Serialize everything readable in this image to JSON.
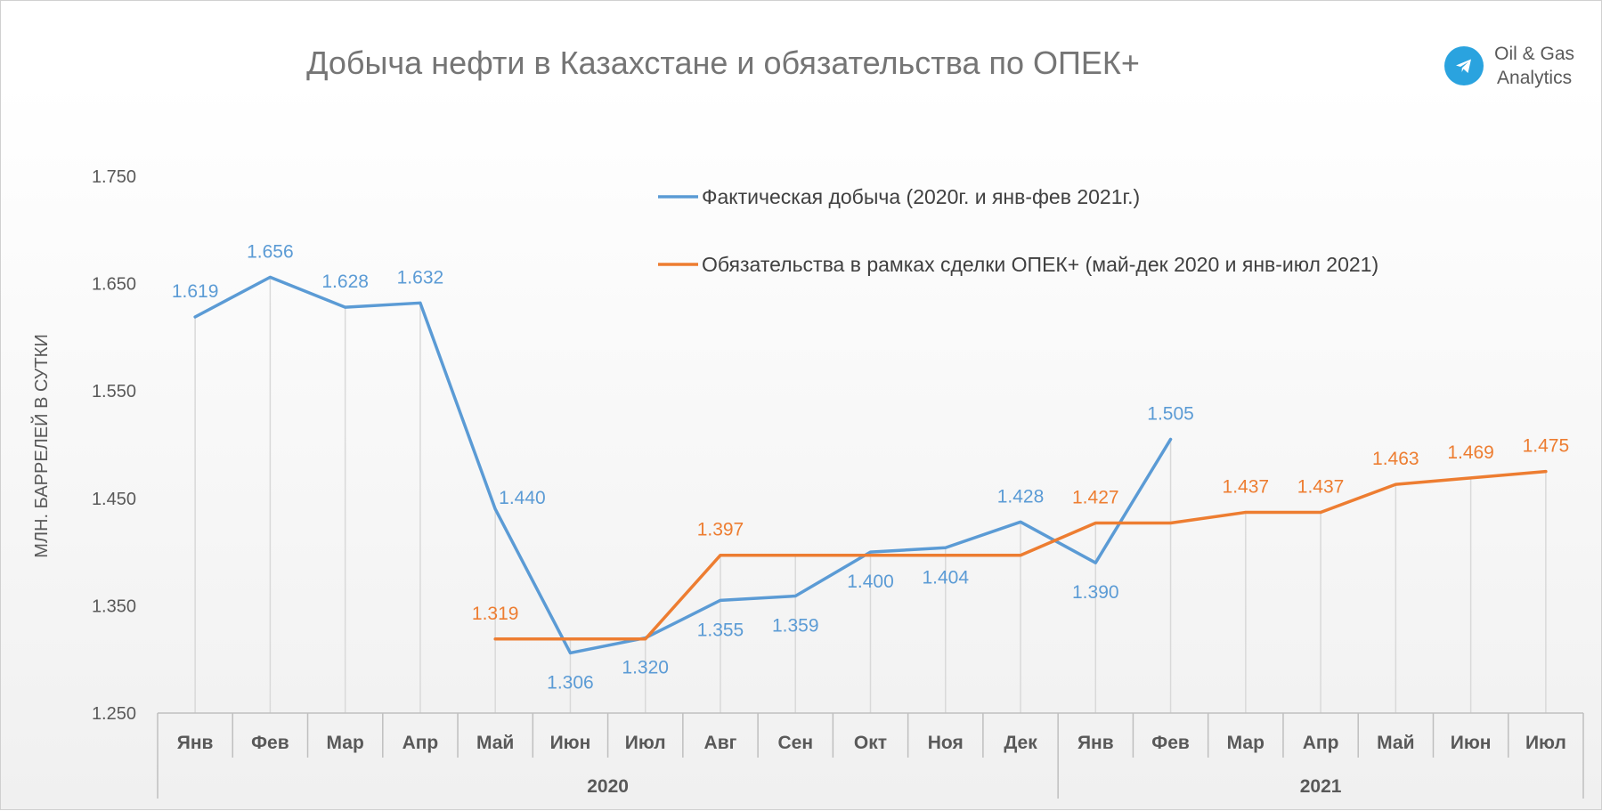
{
  "brand": {
    "line1": "Oil & Gas",
    "line2": "Analytics",
    "icon": "telegram-icon"
  },
  "chart_data": {
    "type": "line",
    "title": "Добыча нефти в Казахстане и обязательства по ОПЕК+",
    "ylabel": "МЛН. БАРРЕЛЕЙ В СУТКИ",
    "xlabel": "",
    "ylim": [
      1.25,
      1.75
    ],
    "yticks": [
      "1.250",
      "1.350",
      "1.450",
      "1.550",
      "1.650",
      "1.750"
    ],
    "categories": [
      "Янв",
      "Фев",
      "Мар",
      "Апр",
      "Май",
      "Июн",
      "Июл",
      "Авг",
      "Сен",
      "Окт",
      "Ноя",
      "Дек",
      "Янв",
      "Фев",
      "Мар",
      "Апр",
      "Май",
      "Июн",
      "Июл"
    ],
    "groups": [
      {
        "label": "2020",
        "count": 12
      },
      {
        "label": "2021",
        "count": 7
      }
    ],
    "series": [
      {
        "name": "Фактическая добыча (2020г. и янв-фев 2021г.)",
        "color": "#5b9bd5",
        "values": [
          1.619,
          1.656,
          1.628,
          1.632,
          1.44,
          1.306,
          1.32,
          1.355,
          1.359,
          1.4,
          1.404,
          1.428,
          1.39,
          1.505,
          null,
          null,
          null,
          null,
          null
        ],
        "labels": [
          "1.619",
          "1.656",
          "1.628",
          "1.632",
          "1.440",
          "1.306",
          "1.320",
          "1.355",
          "1.359",
          "1.400",
          "1.404",
          "1.428",
          "1.390",
          "1.505",
          null,
          null,
          null,
          null,
          null
        ],
        "label_pos": [
          "above",
          "above",
          "above",
          "above",
          "right",
          "below",
          "below",
          "below",
          "below",
          "below",
          "below",
          "above",
          "below",
          "above",
          null,
          null,
          null,
          null,
          null
        ]
      },
      {
        "name": "Обязательства в рамках сделки ОПЕК+ (май-дек 2020 и янв-июл 2021)",
        "color": "#ed7d31",
        "values": [
          null,
          null,
          null,
          null,
          1.319,
          1.319,
          1.319,
          1.397,
          1.397,
          1.397,
          1.397,
          1.397,
          1.427,
          1.427,
          1.437,
          1.437,
          1.463,
          1.469,
          1.475
        ],
        "labels": [
          null,
          null,
          null,
          null,
          "1.319",
          null,
          null,
          "1.397",
          null,
          null,
          null,
          null,
          "1.427",
          null,
          "1.437",
          "1.437",
          "1.463",
          "1.469",
          "1.475"
        ],
        "label_pos": [
          null,
          null,
          null,
          null,
          "above",
          null,
          null,
          "above",
          null,
          null,
          null,
          null,
          "above",
          null,
          "above",
          "above",
          "above",
          "above",
          "above"
        ]
      }
    ],
    "legend": "top-right",
    "grid": "vertical"
  }
}
